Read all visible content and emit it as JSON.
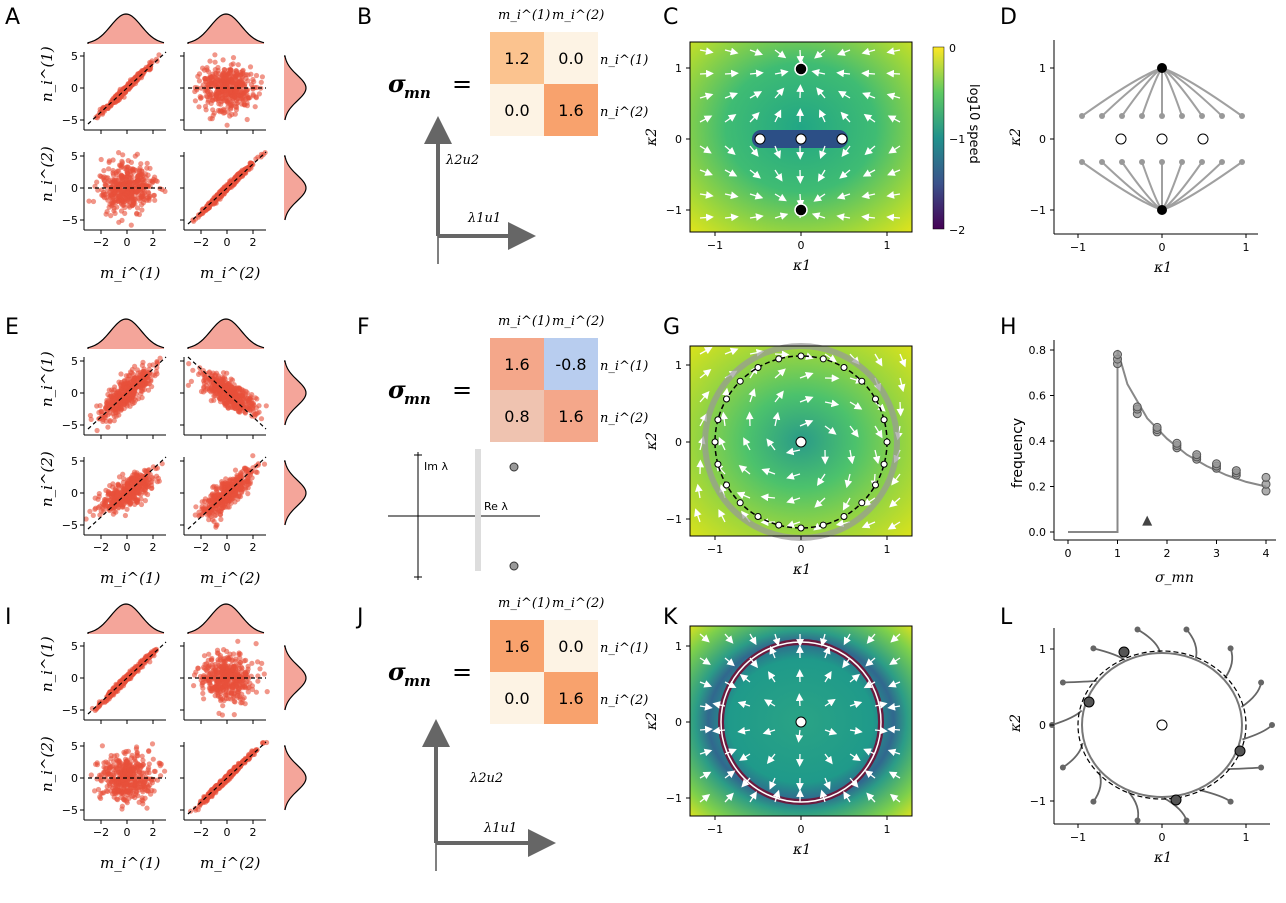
{
  "panel_letters": [
    "A",
    "B",
    "C",
    "D",
    "E",
    "F",
    "G",
    "H",
    "I",
    "J",
    "K",
    "L"
  ],
  "axis_labels": {
    "m1": "m_i^(1)",
    "m2": "m_i^(2)",
    "n1": "n_i^(1)",
    "n2": "n_i^(2)",
    "k1": "κ1",
    "k2": "κ2",
    "frequency": "frequency",
    "sigma": "σ_mn",
    "speed": "log10 speed"
  },
  "tick_labels": {
    "scatter_y": [
      "5",
      "0",
      "−5"
    ],
    "scatter_x": [
      "−2",
      "0",
      "2"
    ],
    "kappa": [
      "−1",
      "0",
      "1"
    ],
    "colorbar": [
      "0",
      "−1",
      "−2"
    ],
    "freq_y": [
      "0.0",
      "0.2",
      "0.4",
      "0.6",
      "0.8"
    ],
    "freq_x": [
      "0",
      "1",
      "2",
      "3",
      "4"
    ]
  },
  "matrices": {
    "symbol": "σ",
    "subscript": "mn",
    "equals": "=",
    "B": {
      "cells": [
        "1.2",
        "0.0",
        "0.0",
        "1.6"
      ],
      "colors": [
        "#fbc38f",
        "#fdf3e4",
        "#fdf3e4",
        "#f8a26d"
      ]
    },
    "F": {
      "cells": [
        "1.6",
        "-0.8",
        "0.8",
        "1.6"
      ],
      "colors": [
        "#f4a78a",
        "#b8cdef",
        "#efc3b0",
        "#f4a78a"
      ]
    },
    "J": {
      "cells": [
        "1.6",
        "0.0",
        "0.0",
        "1.6"
      ],
      "colors": [
        "#f8a26d",
        "#fdf3e4",
        "#fdf3e4",
        "#f8a26d"
      ]
    }
  },
  "eigen_labels": {
    "l1u1": "λ1u1",
    "l2u2": "λ2u2",
    "im": "Im λ",
    "re": "Re λ"
  },
  "colors": {
    "scatter": "#e8503a",
    "hist": "#f4a59a",
    "field_high": "#c8e020",
    "field_mid": "#21a685",
    "field_low": "#2c5f8a",
    "traj": "#a0a0a0"
  },
  "chart_data": [
    {
      "type": "line",
      "panel": "H",
      "xlabel": "σ_mn",
      "ylabel": "frequency",
      "xlim": [
        0,
        4
      ],
      "ylim": [
        0,
        0.8
      ],
      "series": [
        {
          "x": [
            0,
            1,
            1,
            1.2,
            1.6,
            2.0,
            2.4,
            2.8,
            3.2,
            3.6,
            4.0
          ],
          "y": [
            0,
            0,
            0.8,
            0.65,
            0.5,
            0.41,
            0.34,
            0.29,
            0.25,
            0.22,
            0.2
          ]
        }
      ],
      "points": [
        {
          "x": 1.0,
          "y": [
            0.74,
            0.76,
            0.78
          ]
        },
        {
          "x": 1.4,
          "y": [
            0.52,
            0.54,
            0.55
          ]
        },
        {
          "x": 1.8,
          "y": [
            0.44,
            0.45,
            0.46
          ]
        },
        {
          "x": 2.2,
          "y": [
            0.37,
            0.38,
            0.39
          ]
        },
        {
          "x": 2.6,
          "y": [
            0.32,
            0.33,
            0.34
          ]
        },
        {
          "x": 3.0,
          "y": [
            0.28,
            0.29,
            0.3
          ]
        },
        {
          "x": 3.4,
          "y": [
            0.25,
            0.26,
            0.27
          ]
        },
        {
          "x": 4.0,
          "y": [
            0.18,
            0.21,
            0.24
          ]
        }
      ],
      "marker": {
        "x": 1.6,
        "y": 0.05
      }
    }
  ]
}
